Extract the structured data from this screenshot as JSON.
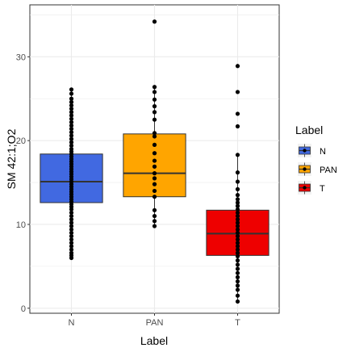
{
  "chart_data": {
    "type": "box",
    "xlabel": "Label",
    "ylabel": "SM 42:1;O2",
    "ylim": [
      -0.6,
      36.2
    ],
    "yticks": [
      0,
      10,
      20,
      30
    ],
    "categories": [
      "N",
      "PAN",
      "T"
    ],
    "grid": true,
    "legend": {
      "title": "Label",
      "position": "right",
      "entries": [
        {
          "label": "N",
          "color": "#4169E1"
        },
        {
          "label": "PAN",
          "color": "#FFA500"
        },
        {
          "label": "T",
          "color": "#EE0000"
        }
      ]
    },
    "boxes": [
      {
        "category": "N",
        "q1": 12.6,
        "median": 15.1,
        "q3": 18.4,
        "whisker_low": 6.0,
        "whisker_high": 26.1,
        "color": "#4169E1",
        "points": [
          6.0,
          6.3,
          6.6,
          7.0,
          7.4,
          7.8,
          8.2,
          8.6,
          9.0,
          9.4,
          9.8,
          10.2,
          10.6,
          11.0,
          11.4,
          11.8,
          12.1,
          12.4,
          12.7,
          13.0,
          13.3,
          13.6,
          13.9,
          14.2,
          14.5,
          14.8,
          15.1,
          15.4,
          15.7,
          16.0,
          16.3,
          16.6,
          16.9,
          17.2,
          17.5,
          17.8,
          18.1,
          18.4,
          18.7,
          19.0,
          19.4,
          19.8,
          20.2,
          20.6,
          21.0,
          21.4,
          21.8,
          22.2,
          22.6,
          23.0,
          23.4,
          23.8,
          24.2,
          24.6,
          25.0,
          25.6,
          26.1
        ]
      },
      {
        "category": "PAN",
        "q1": 13.3,
        "median": 16.1,
        "q3": 20.8,
        "whisker_low": 9.8,
        "whisker_high": 26.4,
        "color": "#FFA500",
        "points": [
          9.8,
          10.4,
          11.0,
          11.7,
          13.3,
          14.0,
          14.8,
          15.5,
          16.1,
          16.9,
          17.6,
          18.5,
          19.5,
          20.5,
          20.9,
          22.5,
          23.4,
          24.1,
          24.9,
          25.8,
          26.4,
          34.2
        ]
      },
      {
        "category": "T",
        "q1": 6.3,
        "median": 8.9,
        "q3": 11.7,
        "whisker_low": 0.8,
        "whisker_high": 18.3,
        "color": "#EE0000",
        "points": [
          0.8,
          1.5,
          2.2,
          2.7,
          3.2,
          3.7,
          4.2,
          4.7,
          5.2,
          5.7,
          6.2,
          6.6,
          7.0,
          7.4,
          7.8,
          8.2,
          8.6,
          9.0,
          9.4,
          9.8,
          10.2,
          10.6,
          11.0,
          11.4,
          11.8,
          12.2,
          12.6,
          13.0,
          13.5,
          14.2,
          15.1,
          16.2,
          18.3,
          21.7,
          23.2,
          25.8,
          28.9
        ]
      }
    ]
  }
}
